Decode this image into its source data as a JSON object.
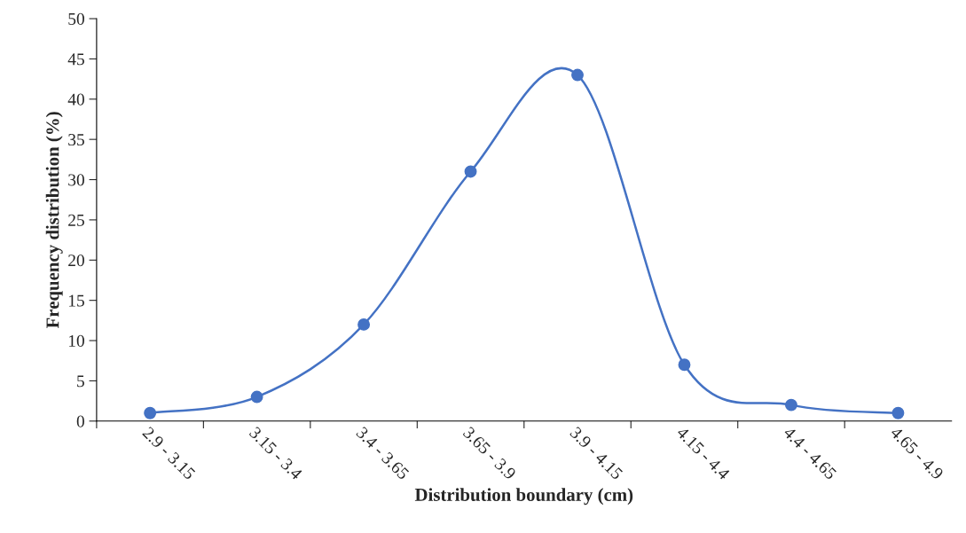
{
  "chart_data": {
    "type": "line",
    "xlabel": "Distribution boundary (cm)",
    "ylabel": "Frequency distribution (%)",
    "categories": [
      "2.9 - 3.15",
      "3.15 - 3.4",
      "3.4 - 3.65",
      "3.65 - 3.9",
      "3.9 - 4.15",
      "4.15 - 4.4",
      "4.4 - 4.65",
      "4.65 - 4.9"
    ],
    "series": [
      {
        "color": "#4472c4",
        "values": [
          1,
          3,
          12,
          31,
          43,
          7,
          2,
          1
        ]
      }
    ],
    "ylim": [
      0,
      50
    ],
    "yticks": [
      0,
      5,
      10,
      15,
      20,
      25,
      30,
      35,
      40,
      45,
      50
    ],
    "grid": false,
    "legend": false,
    "marker": "circle",
    "line_style": "solid"
  }
}
